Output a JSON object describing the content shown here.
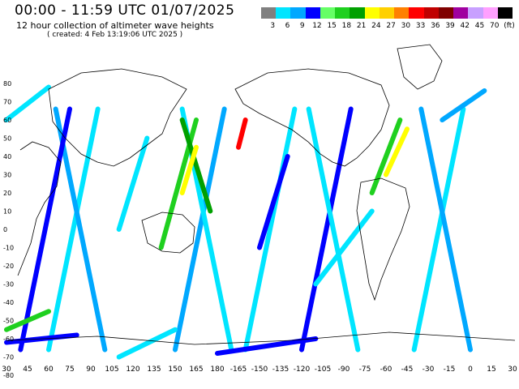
{
  "header": {
    "title": "00:00 - 11:59 UTC 01/07/2025",
    "subtitle": "12 hour collection of altimeter wave heights",
    "created": "( created: 4 Feb 13:19:06 UTC 2025 )"
  },
  "legend": {
    "colors": [
      "#808080",
      "#00e5ff",
      "#00a8ff",
      "#0000ff",
      "#66ff66",
      "#1fd01f",
      "#00a000",
      "#ffff00",
      "#ffd000",
      "#ff8000",
      "#ff0000",
      "#c00000",
      "#800000",
      "#a000a0",
      "#c8a0ff",
      "#ffa0ff",
      "#000000"
    ],
    "labels": [
      "3",
      "6",
      "9",
      "12",
      "15",
      "18",
      "21",
      "24",
      "27",
      "30",
      "33",
      "36",
      "39",
      "42",
      "45",
      "70",
      "(ft)"
    ]
  },
  "axes": {
    "lat_labels": [
      "80",
      "70",
      "60",
      "50",
      "40",
      "30",
      "20",
      "10",
      "0",
      "-10",
      "-20",
      "-30",
      "-40",
      "-50",
      "-60",
      "-70",
      "-80"
    ],
    "lon_labels": [
      "30",
      "45",
      "60",
      "75",
      "90",
      "105",
      "120",
      "135",
      "150",
      "165",
      "180",
      "-165",
      "-150",
      "-135",
      "-120",
      "-105",
      "-90",
      "-75",
      "-60",
      "-45",
      "-30",
      "-15",
      "0",
      "15",
      "30"
    ]
  },
  "tracks": [
    {
      "lon0": 150,
      "lat0": -66,
      "lon1": 185,
      "lat1": 66,
      "color": "#00a8ff"
    },
    {
      "lon0": 190,
      "lat0": -66,
      "lon1": 155,
      "lat1": 66,
      "color": "#00e5ff"
    },
    {
      "lon0": 60,
      "lat0": -66,
      "lon1": 95,
      "lat1": 66,
      "color": "#00e5ff"
    },
    {
      "lon0": 100,
      "lat0": -66,
      "lon1": 65,
      "lat1": 66,
      "color": "#00a8ff"
    },
    {
      "lon0": 240,
      "lat0": -66,
      "lon1": 275,
      "lat1": 66,
      "color": "#0000ff"
    },
    {
      "lon0": 280,
      "lat0": -66,
      "lon1": 245,
      "lat1": 66,
      "color": "#00e5ff"
    },
    {
      "lon0": 320,
      "lat0": -66,
      "lon1": 355,
      "lat1": 66,
      "color": "#00e5ff"
    },
    {
      "lon0": 360,
      "lat0": -66,
      "lon1": 325,
      "lat1": 66,
      "color": "#00a8ff"
    },
    {
      "lon0": 40,
      "lat0": -66,
      "lon1": 75,
      "lat1": 66,
      "color": "#0000ff"
    },
    {
      "lon0": 200,
      "lat0": -66,
      "lon1": 235,
      "lat1": 66,
      "color": "#00e5ff"
    },
    {
      "lon0": 140,
      "lat0": -10,
      "lon1": 165,
      "lat1": 60,
      "color": "#1fd01f"
    },
    {
      "lon0": 175,
      "lat0": 10,
      "lon1": 155,
      "lat1": 60,
      "color": "#00a000"
    },
    {
      "lon0": 155,
      "lat0": 20,
      "lon1": 165,
      "lat1": 45,
      "color": "#ffff00"
    },
    {
      "lon0": 290,
      "lat0": 20,
      "lon1": 310,
      "lat1": 60,
      "color": "#1fd01f"
    },
    {
      "lon0": 300,
      "lat0": 30,
      "lon1": 315,
      "lat1": 55,
      "color": "#ffff00"
    },
    {
      "lon0": 195,
      "lat0": 45,
      "lon1": 200,
      "lat1": 60,
      "color": "#ff0000"
    },
    {
      "lon0": 30,
      "lat0": -62,
      "lon1": 80,
      "lat1": -58,
      "color": "#0000ff"
    },
    {
      "lon0": 180,
      "lat0": -68,
      "lon1": 250,
      "lat1": -60,
      "color": "#0000ff"
    },
    {
      "lon0": 30,
      "lat0": -55,
      "lon1": 60,
      "lat1": -45,
      "color": "#1fd01f"
    },
    {
      "lon0": 110,
      "lat0": -70,
      "lon1": 150,
      "lat1": -55,
      "color": "#00e5ff"
    },
    {
      "lon0": 250,
      "lat0": -30,
      "lon1": 290,
      "lat1": 10,
      "color": "#00e5ff"
    },
    {
      "lon0": 340,
      "lat0": 60,
      "lon1": 370,
      "lat1": 76,
      "color": "#00a8ff"
    },
    {
      "lon0": 30,
      "lat0": 60,
      "lon1": 60,
      "lat1": 78,
      "color": "#00e5ff"
    },
    {
      "lon0": 210,
      "lat0": -10,
      "lon1": 230,
      "lat1": 40,
      "color": "#0000ff"
    },
    {
      "lon0": 110,
      "lat0": 0,
      "lon1": 130,
      "lat1": 50,
      "color": "#00e5ff"
    }
  ]
}
